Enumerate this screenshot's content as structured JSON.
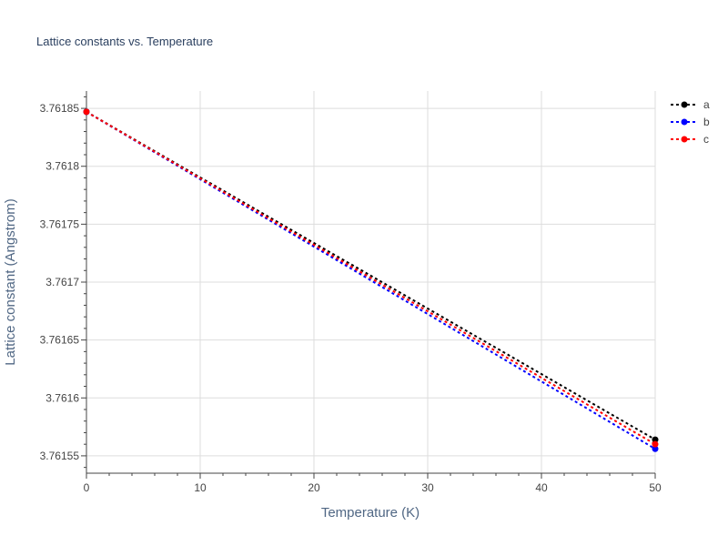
{
  "chart_data": {
    "type": "line",
    "title": "Lattice constants vs. Temperature",
    "xlabel": "Temperature (K)",
    "ylabel": "Lattice constant (Angstrom)",
    "xlim": [
      0,
      50
    ],
    "ylim": [
      3.761535,
      3.761865
    ],
    "x_ticks": [
      0,
      10,
      20,
      30,
      40,
      50
    ],
    "x_tick_labels": [
      "0",
      "10",
      "20",
      "30",
      "40",
      "50"
    ],
    "y_ticks": [
      3.76155,
      3.7616,
      3.76165,
      3.7617,
      3.76175,
      3.7618,
      3.76185
    ],
    "y_tick_labels": [
      "3.76155",
      "3.7616",
      "3.76165",
      "3.7617",
      "3.76175",
      "3.7618",
      "3.76185"
    ],
    "grid": true,
    "legend_position": "top-right",
    "series": [
      {
        "name": "a",
        "color": "#000000",
        "x": [
          0,
          50
        ],
        "y": [
          3.761847,
          3.761564
        ]
      },
      {
        "name": "b",
        "color": "#0000ff",
        "x": [
          0,
          50
        ],
        "y": [
          3.761847,
          3.761556
        ]
      },
      {
        "name": "c",
        "color": "#ff0000",
        "x": [
          0,
          50
        ],
        "y": [
          3.761847,
          3.76156
        ]
      }
    ]
  }
}
